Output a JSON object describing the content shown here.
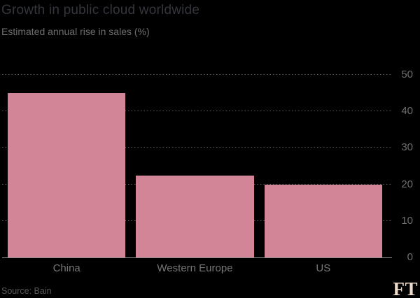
{
  "header": {
    "title": "Growth in public cloud worldwide",
    "subtitle": "Estimated annual rise in sales (%)"
  },
  "chart_data": {
    "type": "bar",
    "title": "Growth in public cloud worldwide",
    "subtitle": "Estimated annual rise in sales (%)",
    "categories": [
      "China",
      "Western Europe",
      "US"
    ],
    "values": [
      45,
      22.5,
      20
    ],
    "xlabel": "",
    "ylabel": "Estimated annual rise in sales (%)",
    "ylim": [
      0,
      50
    ],
    "yticks": [
      0,
      10,
      20,
      30,
      40,
      50
    ],
    "axis_side": "right",
    "grid": "dotted-horizontal",
    "legend": "none",
    "colors": {
      "background": "#000000",
      "bar": "#d18597",
      "baseline": "#8f8f8f",
      "gridline": "#5d5d5d"
    }
  },
  "footer": {
    "source": "Source: Bain",
    "logo": "FT",
    "logo_color": "#ecdbca"
  }
}
